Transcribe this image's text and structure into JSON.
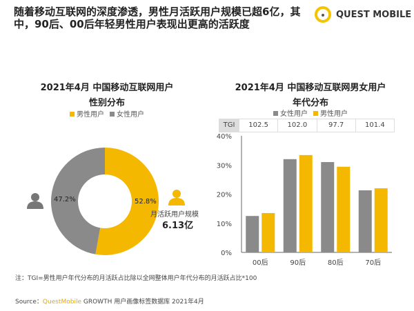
{
  "headline": "随着移动互联网的深度渗透，男性月活跃用户规模已超6亿，其中，90后、00后年轻男性用户表现出更高的活跃度",
  "logo": "QUEST MOBILE",
  "colors": {
    "male": "#f5b800",
    "female": "#8a8a8a"
  },
  "chart_data": [
    {
      "type": "pie",
      "title": "2021年4月 中国移动互联网用户",
      "subtitle": "性别分布",
      "legend": [
        "男性用户",
        "女性用户"
      ],
      "slices": [
        {
          "name": "男性用户",
          "value": 52.8,
          "label": "52.8%"
        },
        {
          "name": "女性用户",
          "value": 47.2,
          "label": "47.2%"
        }
      ],
      "annotation_label": "月活跃用户规模",
      "annotation_value": "6.13亿"
    },
    {
      "type": "bar",
      "title": "2021年4月 中国移动互联网男女用户",
      "subtitle": "年代分布",
      "categories": [
        "00后",
        "90后",
        "80后",
        "70后"
      ],
      "series": [
        {
          "name": "女性用户",
          "values": [
            12.5,
            32.0,
            31.0,
            21.3
          ]
        },
        {
          "name": "男性用户",
          "values": [
            13.5,
            33.4,
            29.4,
            22.0
          ]
        }
      ],
      "ylim": [
        0,
        40
      ],
      "yticks": [
        "0%",
        "10%",
        "20%",
        "30%",
        "40%"
      ],
      "tgi_label": "TGI",
      "tgi": [
        "102.5",
        "102.0",
        "97.7",
        "101.4"
      ]
    }
  ],
  "note": "注：TGI=男性用户年代分布的月活跃占比除以全网整体用户年代分布的月活跃占比*100",
  "source_prefix": "Source：",
  "source_brand": "QuestMobile",
  "source_rest": " GROWTH 用户画像标签数据库 2021年4月"
}
